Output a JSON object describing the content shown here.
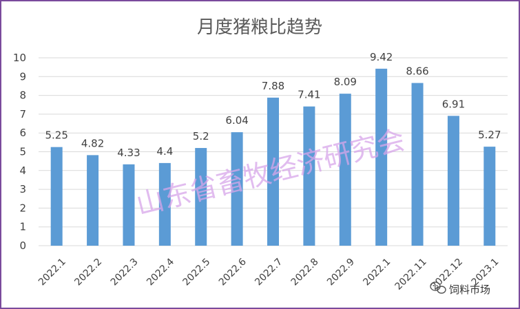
{
  "chart_data": {
    "type": "bar",
    "title": "月度猪粮比趋势",
    "categories": [
      "2022.1",
      "2022.2",
      "2022.3",
      "2022.4",
      "2022.5",
      "2022.6",
      "2022.7",
      "2022.8",
      "2022.9",
      "2022.1",
      "2022.11",
      "2022.12",
      "2023.1"
    ],
    "values": [
      5.25,
      4.82,
      4.33,
      4.4,
      5.2,
      6.04,
      7.88,
      7.41,
      8.09,
      9.42,
      8.66,
      6.91,
      5.27
    ],
    "value_labels": [
      "5.25",
      "4.82",
      "4.33",
      "4.4",
      "5.2",
      "6.04",
      "7.88",
      "7.41",
      "8.09",
      "9.42",
      "8.66",
      "6.91",
      "5.27"
    ],
    "ylim": [
      0,
      10
    ],
    "yticks": [
      0,
      1,
      2,
      3,
      4,
      5,
      6,
      7,
      8,
      9,
      10
    ],
    "grid": true,
    "bar_color": "#5b9bd5",
    "xlabel": "",
    "ylabel": ""
  },
  "watermark": "山东省畜牧经济研究会",
  "brand": {
    "icon": "wechat-icon",
    "label": "饲料市场"
  }
}
